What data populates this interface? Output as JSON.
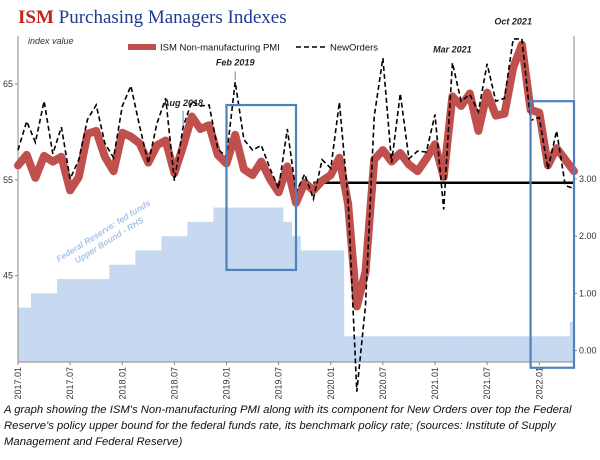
{
  "title": {
    "brand": "ISM",
    "rest": "Purchasing Managers Indexes"
  },
  "caption": "A graph showing the ISM's Non-manufacturing PMI along with its component for New Orders over top the Federal Reserve's policy upper bound for the federal funds rate, its benchmark policy rate; (sources: Institute of Supply Management and Federal Reserve)",
  "colors": {
    "pmi": "#c0504d",
    "new_orders": "#000000",
    "fed_funds": "#c6d9f1",
    "highlight_box": "#4f81bd",
    "reference_line": "#000000"
  },
  "chart_data": {
    "type": "line",
    "ylabel": "index value",
    "ylim": [
      36,
      70
    ],
    "y_ticks": [
      45,
      55,
      65
    ],
    "y2lim": [
      -0.2,
      5.5
    ],
    "y2_ticks": [
      "0.00",
      "1.00",
      "2.00",
      "3.00"
    ],
    "x_tick_labels": [
      "2017.01",
      "2017.07",
      "2018.01",
      "2018.07",
      "2019.01",
      "2019.07",
      "2020.01",
      "2020.07",
      "2021.01",
      "2021.07",
      "2022.01"
    ],
    "x_start": "2017.01",
    "series": [
      {
        "name": "ISM Non-manufacturing PMI",
        "values": [
          56.5,
          57.6,
          55.2,
          57.5,
          56.9,
          57.4,
          53.9,
          55.3,
          59.8,
          60.1,
          57.4,
          55.9,
          59.9,
          59.5,
          58.8,
          56.8,
          58.6,
          59.1,
          55.7,
          58.5,
          61.6,
          60.3,
          60.7,
          57.6,
          56.7,
          59.7,
          56.1,
          55.5,
          56.9,
          55.1,
          53.7,
          56.4,
          52.6,
          54.7,
          53.9,
          54.9,
          55.5,
          57.3,
          52.5,
          41.8,
          45.4,
          57.1,
          58.1,
          56.9,
          57.8,
          56.6,
          55.9,
          57.2,
          58.7,
          55.3,
          63.7,
          62.7,
          64.0,
          60.1,
          64.1,
          61.7,
          61.9,
          66.7,
          69.1,
          62.3,
          62.0,
          56.5,
          58.3,
          57.1,
          55.9
        ],
        "color": "#c0504d"
      },
      {
        "name": "NewOrders",
        "values": [
          58.1,
          61.1,
          58.9,
          63.2,
          57.7,
          60.5,
          55.1,
          57.1,
          61.3,
          62.8,
          58.8,
          57.3,
          62.7,
          64.8,
          60.6,
          56.7,
          60.9,
          63.5,
          54.9,
          60.5,
          63.2,
          62.7,
          62.8,
          58.2,
          57.4,
          65.2,
          59.2,
          58.1,
          58.6,
          56.2,
          54.1,
          60.3,
          53.7,
          55.6,
          53.0,
          57.1,
          56.2,
          63.1,
          52.9,
          32.9,
          41.9,
          61.6,
          67.7,
          56.8,
          64.0,
          57.2,
          58.0,
          57.9,
          61.8,
          51.9,
          67.2,
          63.2,
          63.9,
          62.1,
          67.1,
          63.2,
          63.5,
          69.7,
          69.7,
          61.2,
          61.5,
          56.1,
          60.1,
          54.4,
          54.1
        ],
        "color": "#000000",
        "style": "dashed"
      },
      {
        "name": "Federal Reserve: fed funds Upper Bound - RHS",
        "axis": "right",
        "values": [
          0.75,
          0.75,
          1.0,
          1.0,
          1.0,
          1.25,
          1.25,
          1.25,
          1.25,
          1.25,
          1.25,
          1.5,
          1.5,
          1.5,
          1.75,
          1.75,
          1.75,
          2.0,
          2.0,
          2.0,
          2.25,
          2.25,
          2.25,
          2.5,
          2.5,
          2.5,
          2.5,
          2.5,
          2.5,
          2.5,
          2.5,
          2.25,
          2.0,
          1.75,
          1.75,
          1.75,
          1.75,
          1.75,
          0.25,
          0.25,
          0.25,
          0.25,
          0.25,
          0.25,
          0.25,
          0.25,
          0.25,
          0.25,
          0.25,
          0.25,
          0.25,
          0.25,
          0.25,
          0.25,
          0.25,
          0.25,
          0.25,
          0.25,
          0.25,
          0.25,
          0.25,
          0.25,
          0.25,
          0.25,
          0.5
        ],
        "color": "#c6d9f1",
        "style": "step-area"
      }
    ],
    "reference_line": {
      "y": 54.7,
      "from_index": 34,
      "to_index": 64
    },
    "highlight_boxes": [
      {
        "from_index": 24,
        "to_index": 32,
        "y_top": 62.8,
        "y_bottom": 45.6
      },
      {
        "from_index": 59,
        "to_index": 64,
        "y_top": 63.2,
        "y_bottom": 35.4
      }
    ],
    "annotations": [
      {
        "text": "Aug 2018",
        "index": 19,
        "y": 62.7
      },
      {
        "text": "Feb 2019",
        "index": 25,
        "y": 66.9
      },
      {
        "text": "Mar 2021",
        "index": 50,
        "y": 68.3
      },
      {
        "text": "Oct 2021",
        "index": 57,
        "y": 71.2
      }
    ],
    "fed_label": [
      "Federal Reserve: fed funds",
      "Upper Bound - RHS"
    ],
    "legend_position": "top-center"
  }
}
